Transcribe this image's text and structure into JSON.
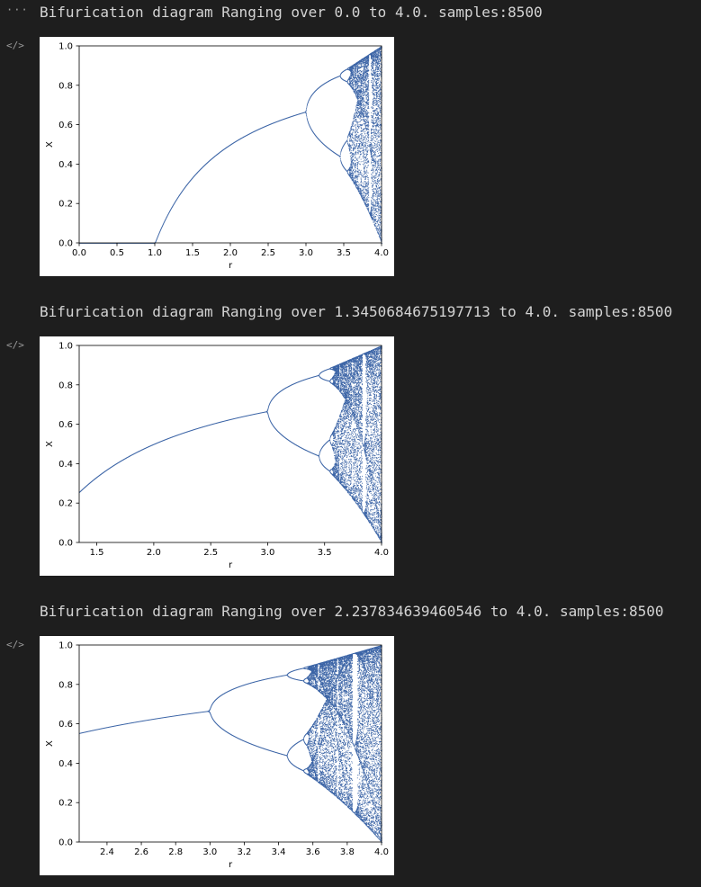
{
  "toolbar": {
    "more_icon": "···",
    "code_icon": "</>"
  },
  "colors": {
    "points": "#3b64a6",
    "background": "#1e1e1e",
    "title": "#d4d4d4"
  },
  "outputs": [
    {
      "title": "Bifurication diagram Ranging over 0.0 to 4.0. samples:8500",
      "chart_data": {
        "type": "scatter",
        "r_min": 0.0,
        "r_max": 4.0,
        "samples": 8500,
        "xlabel": "r",
        "ylabel": "X",
        "xlim": [
          0.0,
          4.0
        ],
        "ylim": [
          0.0,
          1.0
        ],
        "xticks": [
          "0.0",
          "0.5",
          "1.0",
          "1.5",
          "2.0",
          "2.5",
          "3.0",
          "3.5",
          "4.0"
        ],
        "yticks": [
          "0.0",
          "0.2",
          "0.4",
          "0.6",
          "0.8",
          "1.0"
        ]
      }
    },
    {
      "title": "Bifurication diagram Ranging over 1.3450684675197713 to 4.0. samples:8500",
      "chart_data": {
        "type": "scatter",
        "r_min": 1.3450684675197713,
        "r_max": 4.0,
        "samples": 8500,
        "xlabel": "r",
        "ylabel": "X",
        "xlim": [
          1.3450684675197713,
          4.0
        ],
        "ylim": [
          0.0,
          1.0
        ],
        "xticks": [
          "1.5",
          "2.0",
          "2.5",
          "3.0",
          "3.5",
          "4.0"
        ],
        "yticks": [
          "0.0",
          "0.2",
          "0.4",
          "0.6",
          "0.8",
          "1.0"
        ]
      }
    },
    {
      "title": "Bifurication diagram Ranging over 2.237834639460546 to 4.0. samples:8500",
      "chart_data": {
        "type": "scatter",
        "r_min": 2.237834639460546,
        "r_max": 4.0,
        "samples": 8500,
        "xlabel": "r",
        "ylabel": "X",
        "xlim": [
          2.237834639460546,
          4.0
        ],
        "ylim": [
          0.0,
          1.0
        ],
        "xticks": [
          "2.4",
          "2.6",
          "2.8",
          "3.0",
          "3.2",
          "3.4",
          "3.6",
          "3.8",
          "4.0"
        ],
        "yticks": [
          "0.0",
          "0.2",
          "0.4",
          "0.6",
          "0.8",
          "1.0"
        ]
      }
    }
  ]
}
